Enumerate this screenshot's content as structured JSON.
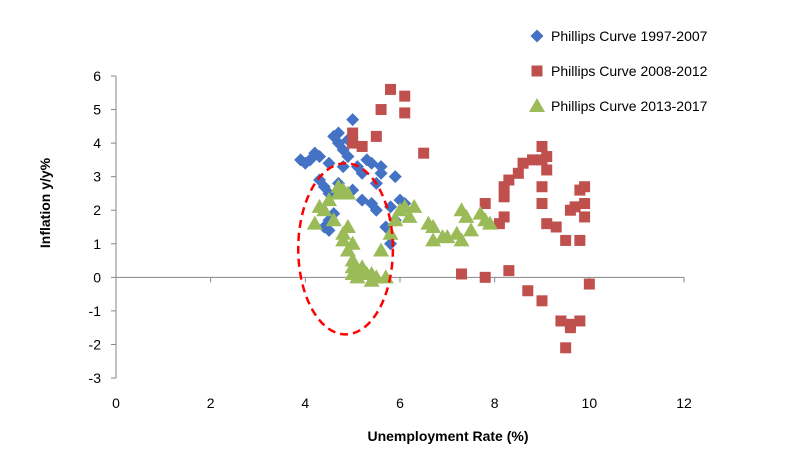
{
  "chart_data": {
    "type": "scatter",
    "xlabel": "Unemployment Rate (%)",
    "ylabel": "Inflation y/y%",
    "xlim": [
      0,
      12
    ],
    "ylim": [
      -3,
      6
    ],
    "x_ticks": [
      0,
      2,
      4,
      6,
      8,
      10,
      12
    ],
    "y_ticks": [
      6,
      5,
      4,
      3,
      2,
      1,
      0,
      -1,
      -2,
      -3
    ],
    "grid": false,
    "legend_position": "top-right",
    "series": [
      {
        "name": "Phillips Curve 1997-2007",
        "marker": "diamond",
        "color": "#4472C4",
        "points": [
          [
            3.9,
            3.5
          ],
          [
            4.0,
            3.4
          ],
          [
            4.1,
            3.5
          ],
          [
            4.2,
            3.7
          ],
          [
            4.3,
            3.6
          ],
          [
            4.3,
            2.9
          ],
          [
            4.4,
            2.7
          ],
          [
            4.4,
            1.5
          ],
          [
            4.5,
            1.4
          ],
          [
            4.5,
            1.7
          ],
          [
            4.6,
            1.9
          ],
          [
            4.5,
            3.4
          ],
          [
            4.6,
            4.2
          ],
          [
            4.7,
            4.3
          ],
          [
            4.7,
            4.0
          ],
          [
            4.8,
            3.8
          ],
          [
            4.9,
            3.6
          ],
          [
            4.9,
            4.1
          ],
          [
            5.0,
            4.7
          ],
          [
            5.1,
            3.3
          ],
          [
            5.2,
            3.1
          ],
          [
            5.3,
            3.5
          ],
          [
            5.4,
            3.4
          ],
          [
            5.4,
            2.2
          ],
          [
            5.5,
            2.8
          ],
          [
            5.5,
            2.0
          ],
          [
            5.6,
            3.3
          ],
          [
            5.6,
            3.1
          ],
          [
            5.7,
            1.5
          ],
          [
            5.8,
            1.0
          ],
          [
            5.8,
            2.1
          ],
          [
            5.9,
            3.0
          ],
          [
            5.9,
            1.7
          ],
          [
            6.0,
            2.3
          ],
          [
            6.1,
            2.2
          ],
          [
            4.5,
            2.5
          ],
          [
            4.7,
            2.8
          ],
          [
            4.8,
            3.3
          ],
          [
            5.0,
            2.6
          ],
          [
            5.2,
            2.3
          ]
        ]
      },
      {
        "name": "Phillips Curve 2008-2012",
        "marker": "square",
        "color": "#C0504D",
        "points": [
          [
            5.0,
            4.0
          ],
          [
            5.0,
            4.3
          ],
          [
            5.2,
            3.9
          ],
          [
            5.5,
            4.2
          ],
          [
            5.6,
            5.0
          ],
          [
            5.8,
            5.6
          ],
          [
            6.1,
            5.4
          ],
          [
            6.1,
            4.9
          ],
          [
            6.5,
            3.7
          ],
          [
            7.3,
            0.1
          ],
          [
            7.8,
            0.0
          ],
          [
            7.8,
            2.2
          ],
          [
            8.1,
            1.6
          ],
          [
            8.2,
            1.8
          ],
          [
            8.2,
            2.4
          ],
          [
            8.2,
            2.7
          ],
          [
            8.3,
            2.9
          ],
          [
            8.3,
            0.2
          ],
          [
            8.5,
            3.1
          ],
          [
            8.6,
            3.4
          ],
          [
            8.7,
            -0.4
          ],
          [
            8.8,
            3.5
          ],
          [
            9.0,
            3.9
          ],
          [
            9.0,
            3.5
          ],
          [
            9.1,
            3.6
          ],
          [
            9.1,
            3.2
          ],
          [
            9.0,
            2.7
          ],
          [
            9.0,
            2.2
          ],
          [
            9.0,
            -0.7
          ],
          [
            9.1,
            1.6
          ],
          [
            9.3,
            1.5
          ],
          [
            9.4,
            -1.3
          ],
          [
            9.5,
            -2.1
          ],
          [
            9.5,
            1.1
          ],
          [
            9.6,
            -1.5
          ],
          [
            9.6,
            2.0
          ],
          [
            9.6,
            -1.4
          ],
          [
            9.8,
            -1.3
          ],
          [
            9.8,
            1.1
          ],
          [
            9.8,
            2.6
          ],
          [
            9.9,
            1.8
          ],
          [
            9.9,
            2.2
          ],
          [
            9.9,
            2.7
          ],
          [
            10.0,
            -0.2
          ],
          [
            9.7,
            2.1
          ]
        ]
      },
      {
        "name": "Phillips Curve 2013-2017",
        "marker": "triangle",
        "color": "#9BBB59",
        "points": [
          [
            4.2,
            1.6
          ],
          [
            4.3,
            2.1
          ],
          [
            4.4,
            2.0
          ],
          [
            4.5,
            2.3
          ],
          [
            4.6,
            1.7
          ],
          [
            4.7,
            2.5
          ],
          [
            4.7,
            2.7
          ],
          [
            4.8,
            2.6
          ],
          [
            4.8,
            1.3
          ],
          [
            4.8,
            1.1
          ],
          [
            4.9,
            1.5
          ],
          [
            4.9,
            0.8
          ],
          [
            4.9,
            2.5
          ],
          [
            5.0,
            0.5
          ],
          [
            5.0,
            0.3
          ],
          [
            5.0,
            0.1
          ],
          [
            5.0,
            1.0
          ],
          [
            5.1,
            0.0
          ],
          [
            5.1,
            0.2
          ],
          [
            5.2,
            0.3
          ],
          [
            5.3,
            0.1
          ],
          [
            5.4,
            0.1
          ],
          [
            5.4,
            -0.1
          ],
          [
            5.5,
            0.0
          ],
          [
            5.6,
            0.8
          ],
          [
            5.7,
            0.0
          ],
          [
            5.8,
            1.3
          ],
          [
            5.9,
            1.7
          ],
          [
            6.0,
            2.0
          ],
          [
            6.1,
            2.1
          ],
          [
            6.2,
            1.8
          ],
          [
            6.3,
            2.1
          ],
          [
            6.6,
            1.6
          ],
          [
            6.7,
            1.5
          ],
          [
            6.7,
            1.1
          ],
          [
            6.9,
            1.2
          ],
          [
            7.2,
            1.3
          ],
          [
            7.3,
            2.0
          ],
          [
            7.4,
            1.8
          ],
          [
            7.5,
            1.4
          ],
          [
            7.7,
            1.9
          ],
          [
            7.8,
            1.7
          ],
          [
            7.9,
            1.6
          ],
          [
            7.0,
            1.2
          ],
          [
            7.3,
            1.1
          ]
        ]
      }
    ],
    "annotation": {
      "shape": "dashed-ellipse",
      "color": "#FF0000",
      "center": [
        4.85,
        0.85
      ],
      "radius_x": 1.0,
      "radius_y": 2.55
    }
  }
}
